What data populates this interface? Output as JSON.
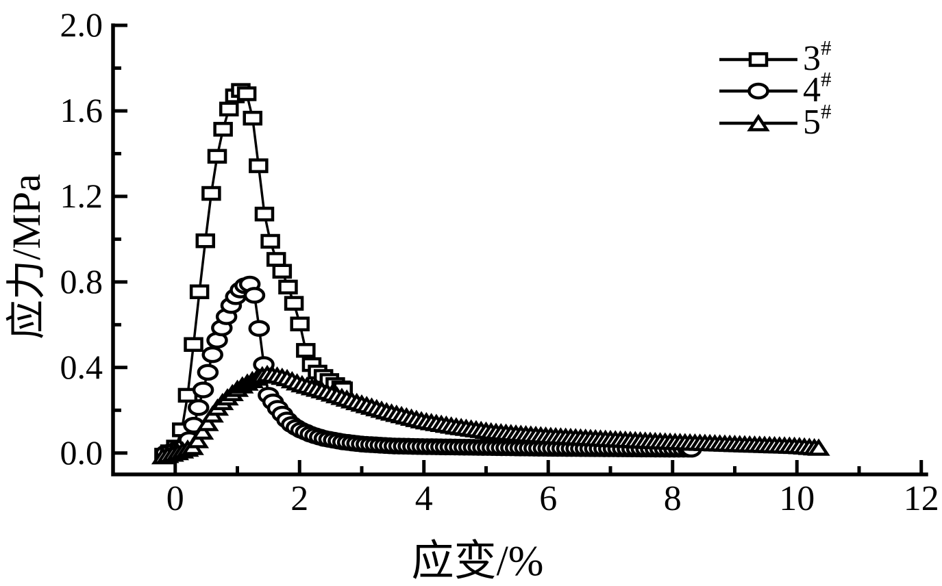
{
  "chart_data": {
    "type": "line",
    "title": "",
    "xlabel": "应变/%",
    "ylabel": "应力/MPa",
    "xlim": [
      -1.0,
      12.08
    ],
    "ylim": [
      -0.1,
      2.0
    ],
    "grid": false,
    "legend_position": "top-right",
    "background_color": "#ffffff",
    "axis_color": "#000000",
    "x_ticks": {
      "major": [
        0,
        2,
        4,
        6,
        8,
        10,
        12
      ],
      "labels": [
        "0",
        "2",
        "4",
        "6",
        "8",
        "10",
        "12"
      ],
      "minor": [
        1,
        3,
        5,
        7,
        9,
        11
      ]
    },
    "y_ticks": {
      "major": [
        0.0,
        0.4,
        0.8,
        1.2,
        1.6,
        2.0
      ],
      "labels": [
        "0.0",
        "0.4",
        "0.8",
        "1.2",
        "1.6",
        "2.0"
      ],
      "minor": [
        0.2,
        0.6,
        1.0,
        1.4,
        1.8
      ]
    },
    "series": [
      {
        "name": "3#",
        "legend_base": "3",
        "legend_sup": "#",
        "marker": "square",
        "color": "#000000",
        "sample_dx": 0.095,
        "points": [
          [
            -0.18,
            -0.01
          ],
          [
            0.0,
            0.02
          ],
          [
            0.1,
            0.1
          ],
          [
            0.2,
            0.27
          ],
          [
            0.3,
            0.52
          ],
          [
            0.4,
            0.78
          ],
          [
            0.5,
            1.03
          ],
          [
            0.6,
            1.26
          ],
          [
            0.7,
            1.43
          ],
          [
            0.8,
            1.55
          ],
          [
            0.9,
            1.64
          ],
          [
            1.0,
            1.69
          ],
          [
            1.1,
            1.7
          ],
          [
            1.2,
            1.66
          ],
          [
            1.31,
            1.43
          ],
          [
            1.4,
            1.17
          ],
          [
            1.5,
            1.02
          ],
          [
            1.6,
            0.92
          ],
          [
            1.72,
            0.85
          ],
          [
            1.81,
            0.78
          ],
          [
            1.9,
            0.71
          ],
          [
            2.0,
            0.61
          ],
          [
            2.1,
            0.48
          ],
          [
            2.2,
            0.41
          ],
          [
            2.3,
            0.375
          ],
          [
            2.45,
            0.345
          ],
          [
            2.6,
            0.315
          ],
          [
            2.7,
            0.3
          ]
        ]
      },
      {
        "name": "4#",
        "legend_base": "4",
        "legend_sup": "#",
        "marker": "ellipse",
        "color": "#000000",
        "sample_dx": 0.075,
        "points": [
          [
            -0.15,
            0.0
          ],
          [
            0.1,
            0.02
          ],
          [
            0.2,
            0.04
          ],
          [
            0.3,
            0.13
          ],
          [
            0.4,
            0.24
          ],
          [
            0.5,
            0.35
          ],
          [
            0.6,
            0.46
          ],
          [
            0.7,
            0.55
          ],
          [
            0.8,
            0.62
          ],
          [
            0.9,
            0.69
          ],
          [
            1.0,
            0.745
          ],
          [
            1.1,
            0.78
          ],
          [
            1.2,
            0.79
          ],
          [
            1.3,
            0.72
          ],
          [
            1.38,
            0.5
          ],
          [
            1.5,
            0.27
          ],
          [
            1.62,
            0.22
          ],
          [
            1.73,
            0.18
          ],
          [
            1.84,
            0.14
          ],
          [
            2.0,
            0.11
          ],
          [
            2.2,
            0.085
          ],
          [
            2.4,
            0.068
          ],
          [
            2.7,
            0.052
          ],
          [
            3.0,
            0.042
          ],
          [
            3.5,
            0.033
          ],
          [
            4.0,
            0.03
          ],
          [
            4.5,
            0.028
          ],
          [
            5.0,
            0.026
          ],
          [
            6.0,
            0.022
          ],
          [
            7.0,
            0.02
          ],
          [
            8.0,
            0.018
          ],
          [
            8.3,
            0.018
          ]
        ]
      },
      {
        "name": "5#",
        "legend_base": "5",
        "legend_sup": "#",
        "marker": "triangle",
        "color": "#000000",
        "sample_dx": 0.08,
        "points": [
          [
            -0.2,
            -0.015
          ],
          [
            0.0,
            0.0
          ],
          [
            0.2,
            0.02
          ],
          [
            0.3,
            0.03
          ],
          [
            0.4,
            0.08
          ],
          [
            0.5,
            0.13
          ],
          [
            0.6,
            0.18
          ],
          [
            0.7,
            0.22
          ],
          [
            0.8,
            0.25
          ],
          [
            0.9,
            0.275
          ],
          [
            1.0,
            0.3
          ],
          [
            1.1,
            0.32
          ],
          [
            1.2,
            0.335
          ],
          [
            1.3,
            0.35
          ],
          [
            1.45,
            0.37
          ],
          [
            1.6,
            0.365
          ],
          [
            1.8,
            0.35
          ],
          [
            2.0,
            0.325
          ],
          [
            2.4,
            0.29
          ],
          [
            2.9,
            0.24
          ],
          [
            3.4,
            0.195
          ],
          [
            4.0,
            0.15
          ],
          [
            4.5,
            0.125
          ],
          [
            5.1,
            0.1
          ],
          [
            5.5,
            0.09
          ],
          [
            6.0,
            0.08
          ],
          [
            7.0,
            0.065
          ],
          [
            7.6,
            0.057
          ],
          [
            8.0,
            0.052
          ],
          [
            9.0,
            0.042
          ],
          [
            10.0,
            0.033
          ],
          [
            10.35,
            0.025
          ]
        ]
      }
    ]
  }
}
